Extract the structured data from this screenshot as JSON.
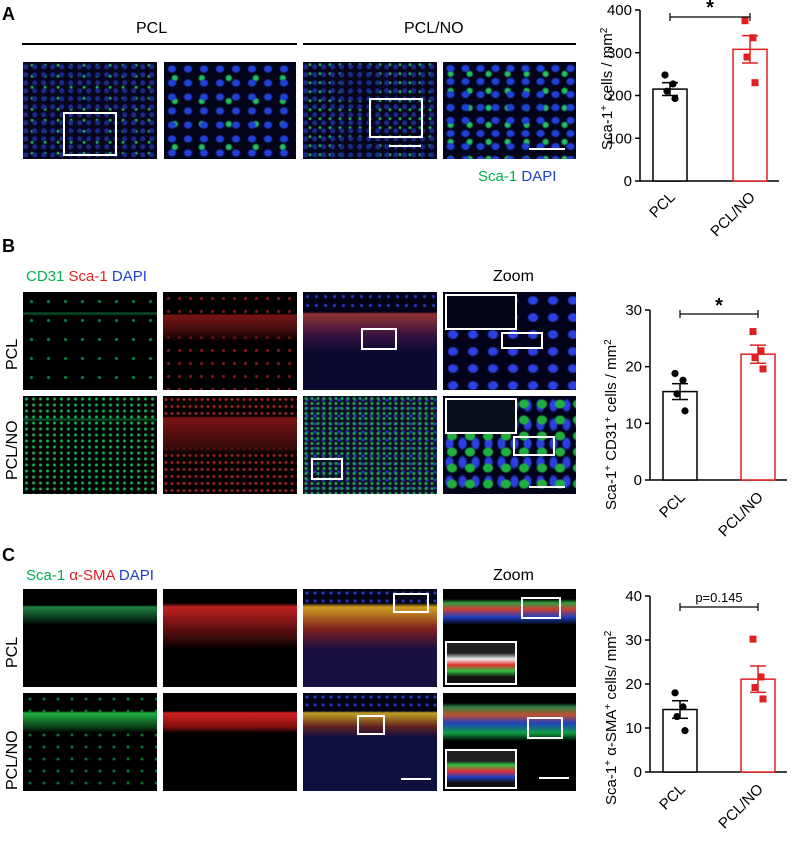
{
  "panels": {
    "A": {
      "letter": "A",
      "headers": [
        "PCL",
        "PCL/NO"
      ],
      "stain": [
        {
          "text": "Sca-1",
          "color": "#00b050"
        },
        {
          "text": " DAPI",
          "color": "#1f3fd6"
        }
      ]
    },
    "B": {
      "letter": "B",
      "stain": [
        {
          "text": "CD31",
          "color": "#00b050"
        },
        {
          "text": " Sca-1",
          "color": "#e02020"
        },
        {
          "text": " DAPI",
          "color": "#1f3fd6"
        }
      ],
      "zoom_label": "Zoom",
      "rows": [
        "PCL",
        "PCL/NO"
      ]
    },
    "C": {
      "letter": "C",
      "stain": [
        {
          "text": "Sca-1",
          "color": "#00b050"
        },
        {
          "text": " α-SMA",
          "color": "#e02020"
        },
        {
          "text": " DAPI",
          "color": "#1f3fd6"
        }
      ],
      "zoom_label": "Zoom",
      "rows": [
        "PCL",
        "PCL/NO"
      ]
    }
  },
  "colors": {
    "pcl": "#000000",
    "pcl_no": "#e02020",
    "sca1": "#00b050",
    "cd31": "#00b050",
    "red_channel": "#e02020",
    "dapi": "#1f3fd6"
  },
  "chart_data": [
    {
      "type": "bar",
      "panel": "A",
      "categories": [
        "PCL",
        "PCL/NO"
      ],
      "values": [
        215,
        308
      ],
      "errors": [
        15,
        32
      ],
      "points": [
        [
          248,
          227,
          210,
          193
        ],
        [
          375,
          335,
          290,
          230
        ]
      ],
      "ylabel_main": "Sca-1",
      "ylabel_sup": "+",
      "ylabel_rest": " cells / mm",
      "ylabel_sup2": "2",
      "ylim": [
        0,
        400
      ],
      "yticks": [
        0,
        100,
        200,
        300,
        400
      ],
      "significance": "*"
    },
    {
      "type": "bar",
      "panel": "B",
      "categories": [
        "PCL",
        "PCL/NO"
      ],
      "values": [
        15.6,
        22.2
      ],
      "errors": [
        1.4,
        1.6
      ],
      "points": [
        [
          18.8,
          17.6,
          15.2,
          12.2
        ],
        [
          26.2,
          22.8,
          21.6,
          19.6
        ]
      ],
      "ylabel_parts": [
        "Sca-1",
        "+",
        " CD31",
        "+",
        " cells / mm",
        "2"
      ],
      "ylim": [
        0,
        30
      ],
      "yticks": [
        0,
        10,
        20,
        30
      ],
      "significance": "*"
    },
    {
      "type": "bar",
      "panel": "C",
      "categories": [
        "PCL",
        "PCL/NO"
      ],
      "values": [
        14.2,
        21.1
      ],
      "errors": [
        2.0,
        3.0
      ],
      "points": [
        [
          18.0,
          14.8,
          12.6,
          9.4
        ],
        [
          30.2,
          21.6,
          19.2,
          16.6
        ]
      ],
      "ylabel_parts": [
        "Sca-1",
        "+",
        " α-SMA",
        "+",
        " cells/ mm",
        "2"
      ],
      "ylim": [
        0,
        40
      ],
      "yticks": [
        0,
        10,
        20,
        30,
        40
      ],
      "significance": "p=0.145"
    }
  ]
}
